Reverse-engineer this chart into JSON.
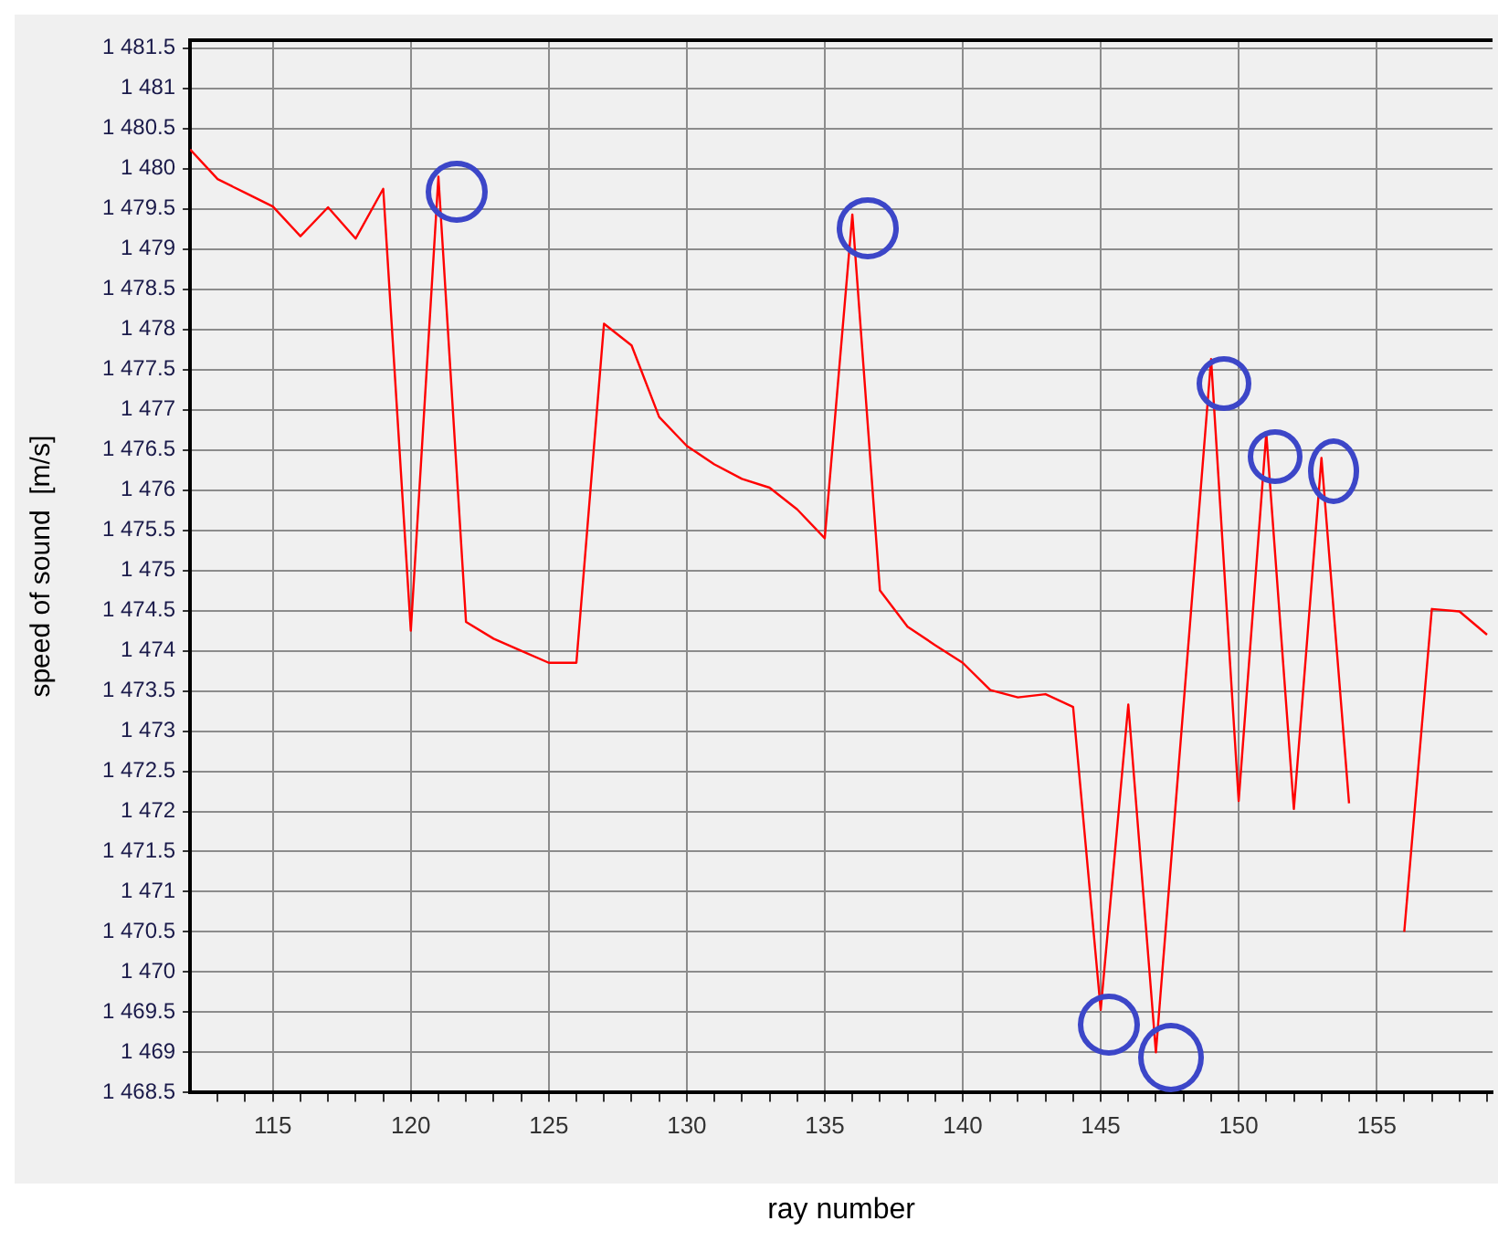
{
  "chart_data": {
    "type": "line",
    "xlabel": "ray number",
    "ylabel": "speed of sound  [m/s]",
    "x": [
      112,
      113,
      114,
      115,
      116,
      117,
      118,
      119,
      120,
      121,
      122,
      123,
      124,
      125,
      126,
      127,
      128,
      129,
      130,
      131,
      132,
      133,
      134,
      135,
      136,
      137,
      138,
      139,
      140,
      141,
      142,
      143,
      144,
      145,
      146,
      147,
      149,
      150,
      151,
      152,
      153,
      154,
      155,
      156,
      157,
      158,
      159
    ],
    "series": [
      {
        "color": "#ff0000",
        "values": [
          1480.24,
          1479.87,
          1479.7,
          1479.53,
          1479.16,
          1479.52,
          1479.13,
          1479.75,
          1474.25,
          1479.9,
          1474.36,
          1474.15,
          1474.0,
          1473.85,
          1473.85,
          1478.07,
          1477.8,
          1476.91,
          1476.55,
          1476.32,
          1476.14,
          1476.03,
          1475.76,
          1475.4,
          1479.43,
          1474.75,
          1474.3,
          1474.07,
          1473.85,
          1473.51,
          1473.42,
          1473.46,
          1473.3,
          1469.53,
          1473.33,
          1469.0,
          1477.63,
          1472.13,
          1476.71,
          1472.03,
          1476.4,
          1472.1,
          null,
          1470.5,
          1474.52,
          1474.49,
          1474.2
        ]
      }
    ],
    "xlim": [
      112,
      159.2
    ],
    "ylim": [
      1468.5,
      1481.6
    ],
    "xticks": [
      {
        "value": 113,
        "label": null
      },
      {
        "value": 114,
        "label": null
      },
      115,
      {
        "value": 116,
        "label": null
      },
      {
        "value": 117,
        "label": null
      },
      {
        "value": 118,
        "label": null
      },
      {
        "value": 119,
        "label": null
      },
      120,
      {
        "value": 121,
        "label": null
      },
      {
        "value": 122,
        "label": null
      },
      {
        "value": 123,
        "label": null
      },
      {
        "value": 124,
        "label": null
      },
      125,
      {
        "value": 126,
        "label": null
      },
      {
        "value": 127,
        "label": null
      },
      {
        "value": 128,
        "label": null
      },
      {
        "value": 129,
        "label": null
      },
      130,
      {
        "value": 131,
        "label": null
      },
      {
        "value": 132,
        "label": null
      },
      {
        "value": 133,
        "label": null
      },
      {
        "value": 134,
        "label": null
      },
      135,
      {
        "value": 136,
        "label": null
      },
      {
        "value": 137,
        "label": null
      },
      {
        "value": 138,
        "label": null
      },
      {
        "value": 139,
        "label": null
      },
      140,
      {
        "value": 141,
        "label": null
      },
      {
        "value": 142,
        "label": null
      },
      {
        "value": 143,
        "label": null
      },
      {
        "value": 144,
        "label": null
      },
      145,
      {
        "value": 146,
        "label": null
      },
      {
        "value": 147,
        "label": null
      },
      {
        "value": 148,
        "label": null
      },
      {
        "value": 149,
        "label": null
      },
      150,
      {
        "value": 151,
        "label": null
      },
      {
        "value": 152,
        "label": null
      },
      {
        "value": 153,
        "label": null
      },
      {
        "value": 154,
        "label": null
      },
      155,
      {
        "value": 156,
        "label": null
      },
      {
        "value": 157,
        "label": null
      },
      {
        "value": 158,
        "label": null
      },
      {
        "value": 159,
        "label": null
      }
    ],
    "yticks": [
      {
        "value": 1468.5,
        "label": "1 468.5"
      },
      {
        "value": 1469,
        "label": "1 469"
      },
      {
        "value": 1469.5,
        "label": "1 469.5"
      },
      {
        "value": 1470,
        "label": "1 470"
      },
      {
        "value": 1470.5,
        "label": "1 470.5"
      },
      {
        "value": 1471,
        "label": "1 471"
      },
      {
        "value": 1471.5,
        "label": "1 471.5"
      },
      {
        "value": 1472,
        "label": "1 472"
      },
      {
        "value": 1472.5,
        "label": "1 472.5"
      },
      {
        "value": 1473,
        "label": "1 473"
      },
      {
        "value": 1473.5,
        "label": "1 473.5"
      },
      {
        "value": 1474,
        "label": "1 474"
      },
      {
        "value": 1474.5,
        "label": "1 474.5"
      },
      {
        "value": 1475,
        "label": "1 475"
      },
      {
        "value": 1475.5,
        "label": "1 475.5"
      },
      {
        "value": 1476,
        "label": "1 476"
      },
      {
        "value": 1476.5,
        "label": "1 476.5"
      },
      {
        "value": 1477,
        "label": "1 477"
      },
      {
        "value": 1477.5,
        "label": "1 477.5"
      },
      {
        "value": 1478,
        "label": "1 478"
      },
      {
        "value": 1478.5,
        "label": "1 478.5"
      },
      {
        "value": 1479,
        "label": "1 479"
      },
      {
        "value": 1479.5,
        "label": "1 479.5"
      },
      {
        "value": 1480,
        "label": "1 480"
      },
      {
        "value": 1480.5,
        "label": "1 480.5"
      },
      {
        "value": 1481,
        "label": "1 481"
      },
      {
        "value": 1481.5,
        "label": "1 481.5"
      }
    ],
    "grid": true,
    "legend": false,
    "marker": "none",
    "line_style": "solid"
  }
}
